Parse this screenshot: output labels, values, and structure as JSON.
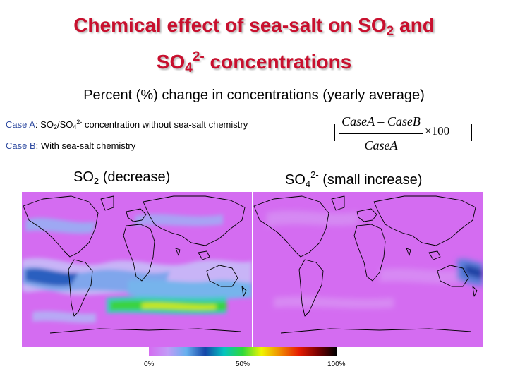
{
  "title": {
    "line1_a": "Chemical effect of sea-salt on SO",
    "line1_sub": "2",
    "line1_b": " and",
    "line2_a": "SO",
    "line2_sub": "4",
    "line2_sup": "2-",
    "line2_b": " concentrations"
  },
  "subtitle": "Percent (%) change in concentrations (yearly average)",
  "case_a": {
    "label": "Case A",
    "text_a": ": SO",
    "sub1": "2",
    "text_b": "/SO",
    "sub2": "4",
    "sup": "2-",
    "text_c": " concentration without sea-salt chemistry"
  },
  "case_b": {
    "label": "Case B",
    "text": ": With sea-salt chemistry"
  },
  "formula": {
    "numerator": "CaseA – CaseB",
    "denominator": "CaseA",
    "multiplier": "×100"
  },
  "maps": {
    "left": {
      "label_a": "SO",
      "label_sub": "2",
      "label_b": " (decrease)"
    },
    "right": {
      "label_a": "SO",
      "label_sub": "4",
      "label_sup": "2-",
      "label_b": " (small increase)"
    }
  },
  "colorbar": {
    "ticks": [
      "0%",
      "50%",
      "100%"
    ],
    "colors": [
      "#d46cf1",
      "#c39cf7",
      "#66b0ee",
      "#1546a8",
      "#05c4c0",
      "#2fd93a",
      "#f0f500",
      "#f08a00",
      "#e61c00",
      "#7a0000",
      "#000000"
    ]
  }
}
